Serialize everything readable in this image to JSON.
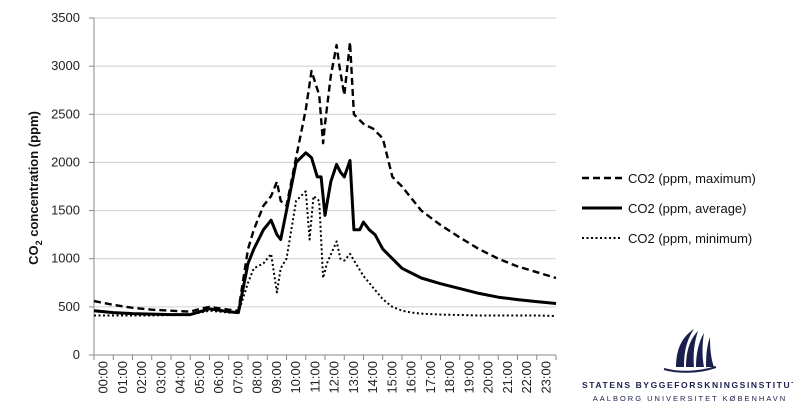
{
  "chart_data": {
    "type": "line",
    "ylabel_main": "CO",
    "ylabel_sub": "2",
    "ylabel_rest": " concentration (ppm)",
    "ylim": [
      0,
      3500
    ],
    "yticks": [
      "0",
      "500",
      "1000",
      "1500",
      "2000",
      "2500",
      "3000",
      "3500"
    ],
    "ytick_values": [
      0,
      500,
      1000,
      1500,
      2000,
      2500,
      3000,
      3500
    ],
    "xlim": [
      0,
      24
    ],
    "xticks": [
      "00:00",
      "01:00",
      "02:00",
      "03:00",
      "04:00",
      "05:00",
      "06:00",
      "07:00",
      "08:00",
      "09:00",
      "10:00",
      "11:00",
      "12:00",
      "13:00",
      "14:00",
      "15:00",
      "16:00",
      "17:00",
      "18:00",
      "19:00",
      "20:00",
      "21:00",
      "22:00",
      "23:00"
    ],
    "grid": "horizontal",
    "legend_position": "right",
    "series": [
      {
        "name": "CO2 (ppm, maximum)",
        "style": "dashed",
        "x": [
          0,
          1,
          2,
          3,
          4,
          5,
          5.5,
          6,
          7,
          7.5,
          8,
          8.3,
          8.8,
          9.2,
          9.5,
          9.7,
          10,
          10.5,
          11,
          11.3,
          11.7,
          11.9,
          12,
          12.3,
          12.6,
          12.75,
          13,
          13.3,
          13.5,
          14,
          14.5,
          15,
          15.5,
          16,
          17,
          18,
          19,
          20,
          21,
          22,
          23,
          24
        ],
        "y": [
          560,
          520,
          490,
          470,
          460,
          450,
          480,
          500,
          470,
          460,
          1100,
          1300,
          1550,
          1650,
          1800,
          1600,
          1550,
          2050,
          2550,
          2950,
          2700,
          2200,
          2400,
          2900,
          3220,
          3000,
          2700,
          3250,
          2500,
          2400,
          2350,
          2250,
          1850,
          1750,
          1500,
          1350,
          1220,
          1100,
          1000,
          920,
          860,
          800
        ]
      },
      {
        "name": "CO2 (ppm, average)",
        "style": "solid",
        "x": [
          0,
          1,
          2,
          3,
          4,
          5,
          5.5,
          6,
          7,
          7.5,
          8,
          8.3,
          8.8,
          9.2,
          9.5,
          9.7,
          10,
          10.5,
          11,
          11.3,
          11.6,
          11.8,
          12,
          12.3,
          12.6,
          12.8,
          13,
          13.3,
          13.5,
          13.8,
          14,
          14.3,
          14.6,
          15,
          15.5,
          16,
          17,
          18,
          19,
          20,
          21,
          22,
          23,
          24
        ],
        "y": [
          460,
          440,
          430,
          425,
          420,
          420,
          450,
          480,
          450,
          440,
          950,
          1100,
          1300,
          1400,
          1250,
          1200,
          1500,
          2000,
          2100,
          2050,
          1850,
          1850,
          1450,
          1800,
          1980,
          1900,
          1850,
          2020,
          1300,
          1300,
          1380,
          1300,
          1250,
          1100,
          1000,
          900,
          800,
          740,
          690,
          640,
          600,
          575,
          555,
          535
        ]
      },
      {
        "name": "CO2 (ppm, minimum)",
        "style": "dotted",
        "x": [
          0,
          1,
          2,
          3,
          4,
          5,
          5.5,
          6,
          7,
          7.5,
          8,
          8.3,
          8.8,
          9.2,
          9.5,
          9.7,
          10,
          10.5,
          11,
          11.2,
          11.4,
          11.7,
          11.9,
          12.1,
          12.6,
          12.8,
          13,
          13.3,
          13.6,
          14,
          14.5,
          15,
          15.5,
          16,
          16.5,
          17,
          18,
          19,
          20,
          21,
          22,
          23,
          24
        ],
        "y": [
          410,
          410,
          410,
          410,
          415,
          420,
          440,
          460,
          440,
          440,
          750,
          900,
          950,
          1050,
          650,
          900,
          1000,
          1600,
          1700,
          1200,
          1650,
          1600,
          800,
          950,
          1180,
          1000,
          980,
          1050,
          950,
          820,
          700,
          580,
          500,
          460,
          440,
          430,
          420,
          415,
          410,
          410,
          410,
          410,
          405
        ]
      }
    ]
  },
  "logo": {
    "name": "STATENS BYGGEFORSKNINGSINSTITUT",
    "subtitle": "AALBORG UNIVERSITET KØBENHAVN",
    "brand_color": "#1a1f4e"
  }
}
